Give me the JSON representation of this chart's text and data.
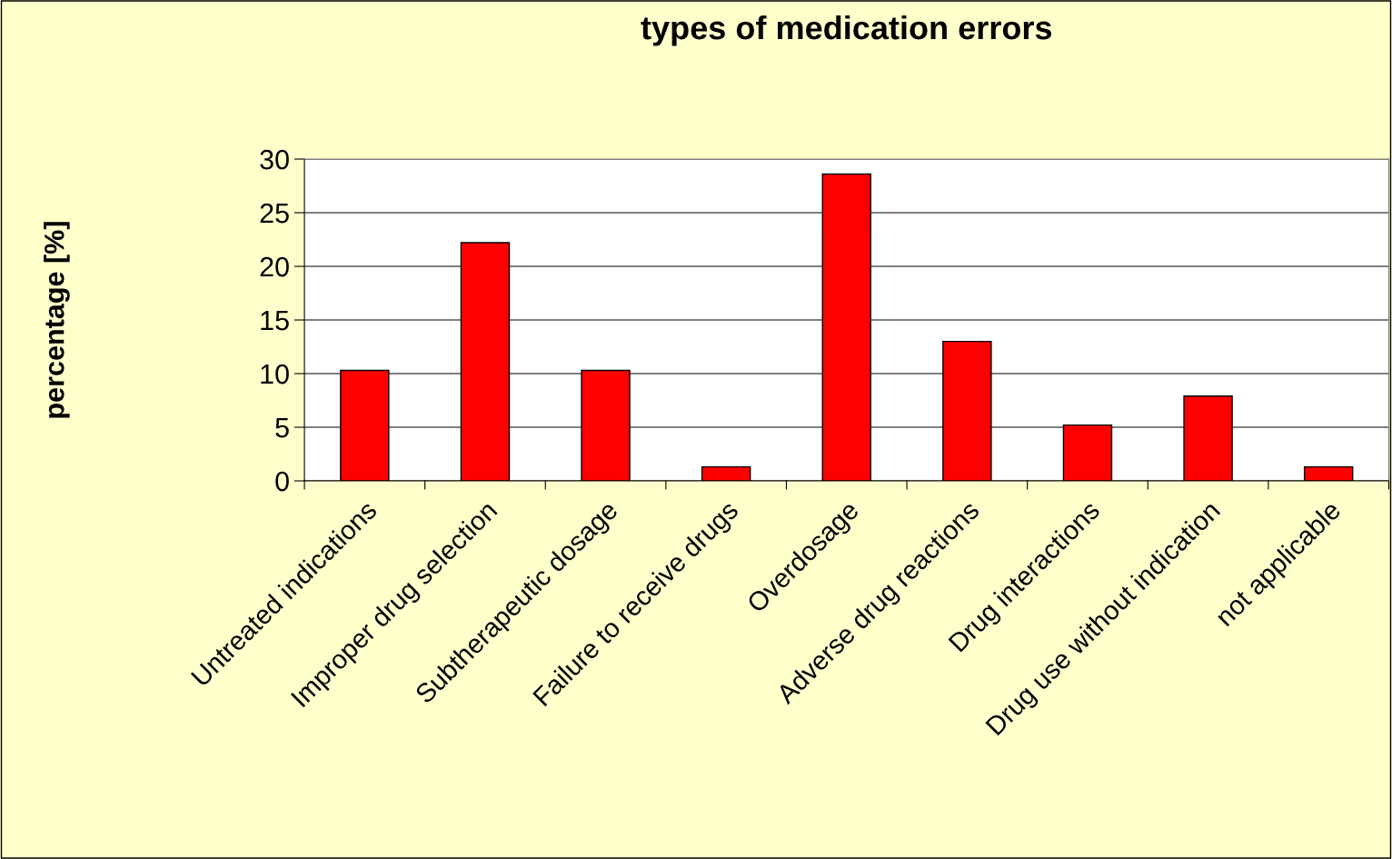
{
  "chart_data": {
    "type": "bar",
    "title": "types of medication errors",
    "ylabel": "percentage [%]",
    "categories": [
      "Untreated indications",
      "Improper drug selection",
      "Subtherapeutic dosage",
      "Failure to receive drugs",
      "Overdosage",
      "Adverse drug reactions",
      "Drug interactions",
      "Drug use without indication",
      "not applicable"
    ],
    "values": [
      10.3,
      22.2,
      10.3,
      1.3,
      28.6,
      13.0,
      5.2,
      7.9,
      1.3
    ],
    "color": "#ff0000",
    "ylim": [
      0,
      30
    ],
    "yticks": [
      0,
      5,
      10,
      15,
      20,
      25,
      30
    ],
    "grid": "y",
    "legend": false
  }
}
